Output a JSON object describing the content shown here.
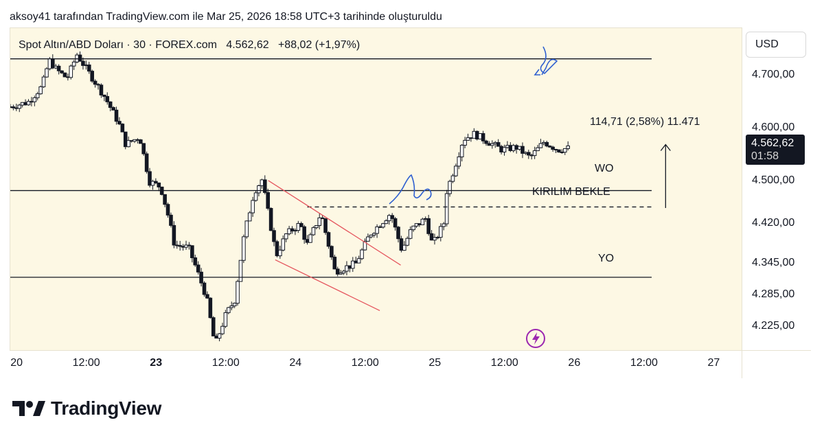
{
  "caption": "aksoy41 tarafından TradingView.com ile Mar 25, 2026 18:58 UTC+3 tarihinde oluşturuldu",
  "symbol": {
    "name": "Spot Altın/ABD Doları · 30 · FOREX.com",
    "price": "4.562,62",
    "change": "+88,02 (+1,97%)"
  },
  "currency_button": "USD",
  "last_price": {
    "value": "4.562,62",
    "countdown": "01:58"
  },
  "measure_label": "114,71 (2,58%) 11.471",
  "brand": {
    "name": "TradingView",
    "logo_icon": "tradingview-logo-icon"
  },
  "colors": {
    "candle": "#131722",
    "background": "#fdf8e4",
    "channel": "#e5565e",
    "sketch": "#2f5fd0",
    "lightning": "#9c27b0"
  },
  "chart_data": {
    "type": "candlestick",
    "title": "Spot Altın/ABD Doları · 30 · FOREX.com",
    "timeframe": "30",
    "ylim": [
      4180,
      4790
    ],
    "y_ticks": [
      {
        "value": 4700,
        "label": "4.700,00"
      },
      {
        "value": 4600,
        "label": "4.600,00"
      },
      {
        "value": 4500,
        "label": "4.500,00"
      },
      {
        "value": 4420,
        "label": "4.420,00"
      },
      {
        "value": 4345,
        "label": "4.345,00"
      },
      {
        "value": 4285,
        "label": "4.285,00"
      },
      {
        "value": 4225,
        "label": "4.225,00"
      }
    ],
    "xlim": [
      -0.05,
      5.2
    ],
    "x_ticks": [
      {
        "t": 0.0,
        "label": "20",
        "bold": false
      },
      {
        "t": 0.5,
        "label": "12:00",
        "bold": false
      },
      {
        "t": 1.0,
        "label": "23",
        "bold": true
      },
      {
        "t": 1.5,
        "label": "12:00",
        "bold": false
      },
      {
        "t": 2.0,
        "label": "24",
        "bold": false
      },
      {
        "t": 2.5,
        "label": "12:00",
        "bold": false
      },
      {
        "t": 3.0,
        "label": "25",
        "bold": false
      },
      {
        "t": 3.5,
        "label": "12:00",
        "bold": false
      },
      {
        "t": 4.0,
        "label": "26",
        "bold": false
      },
      {
        "t": 4.5,
        "label": "12:00",
        "bold": false
      },
      {
        "t": 5.0,
        "label": "27",
        "bold": false
      }
    ],
    "price_path": [
      [
        -0.05,
        4640
      ],
      [
        0.1,
        4650
      ],
      [
        0.2,
        4680
      ],
      [
        0.25,
        4730
      ],
      [
        0.3,
        4712
      ],
      [
        0.38,
        4695
      ],
      [
        0.45,
        4740
      ],
      [
        0.55,
        4700
      ],
      [
        0.65,
        4660
      ],
      [
        0.75,
        4610
      ],
      [
        0.8,
        4570
      ],
      [
        0.9,
        4585
      ],
      [
        0.97,
        4500
      ],
      [
        1.05,
        4490
      ],
      [
        1.1,
        4440
      ],
      [
        1.15,
        4380
      ],
      [
        1.25,
        4375
      ],
      [
        1.3,
        4340
      ],
      [
        1.38,
        4280
      ],
      [
        1.44,
        4190
      ],
      [
        1.52,
        4250
      ],
      [
        1.58,
        4275
      ],
      [
        1.65,
        4400
      ],
      [
        1.72,
        4480
      ],
      [
        1.78,
        4505
      ],
      [
        1.8,
        4470
      ],
      [
        1.88,
        4360
      ],
      [
        1.95,
        4400
      ],
      [
        2.05,
        4420
      ],
      [
        2.1,
        4380
      ],
      [
        2.2,
        4440
      ],
      [
        2.3,
        4330
      ],
      [
        2.45,
        4345
      ],
      [
        2.55,
        4400
      ],
      [
        2.7,
        4440
      ],
      [
        2.78,
        4370
      ],
      [
        2.85,
        4410
      ],
      [
        2.95,
        4430
      ],
      [
        3.0,
        4380
      ],
      [
        3.08,
        4420
      ],
      [
        3.1,
        4480
      ],
      [
        3.15,
        4520
      ],
      [
        3.22,
        4580
      ],
      [
        3.3,
        4590
      ],
      [
        3.4,
        4575
      ],
      [
        3.5,
        4560
      ],
      [
        3.6,
        4565
      ],
      [
        3.7,
        4545
      ],
      [
        3.8,
        4575
      ],
      [
        3.9,
        4560
      ],
      [
        3.96,
        4562.62
      ]
    ],
    "horizontal_lines": [
      {
        "price": 4732,
        "x_end": 4.55,
        "style": "solid",
        "label": ""
      },
      {
        "price": 4483,
        "x_end": 4.55,
        "style": "solid",
        "label": "WO"
      },
      {
        "price": 4452,
        "x_start": 2.08,
        "x_end": 4.55,
        "style": "dashed",
        "label": "KIRILIM BEKLE"
      },
      {
        "price": 4319,
        "x_end": 4.55,
        "style": "solid",
        "label": "YO"
      }
    ],
    "channel_lines": [
      {
        "from": [
          1.8,
          4502
        ],
        "to": [
          2.75,
          4342
        ]
      },
      {
        "from": [
          1.85,
          4352
        ],
        "to": [
          2.6,
          4256
        ]
      }
    ],
    "measure": {
      "x": 4.65,
      "from": 4450,
      "to": 4570,
      "label": "114,71 (2,58%) 11.471"
    }
  }
}
